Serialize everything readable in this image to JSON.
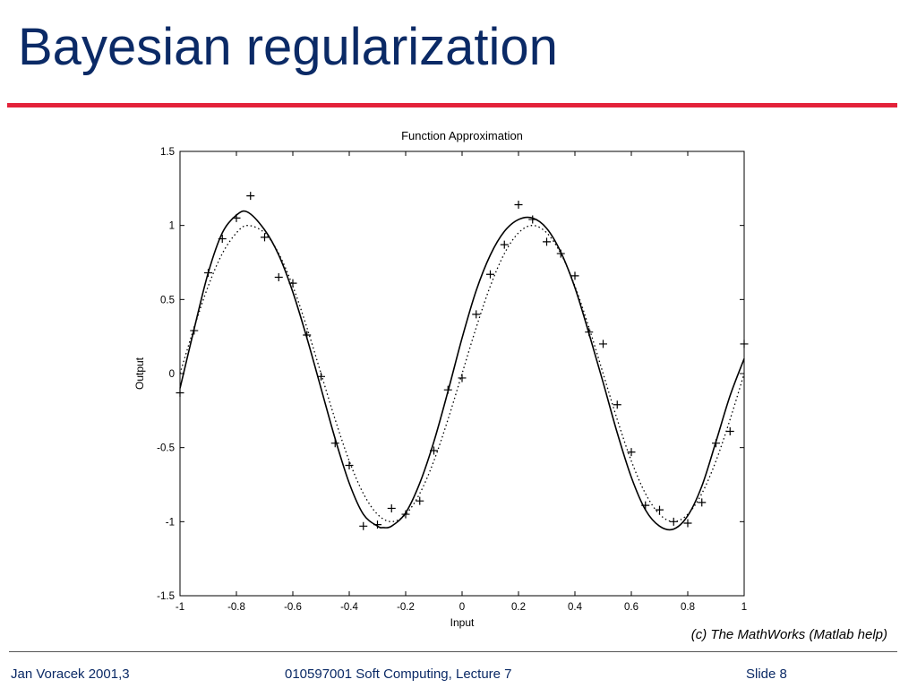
{
  "slide": {
    "title": "Bayesian regularization",
    "credit": "(c) The MathWorks (Matlab help)",
    "footer": {
      "author": "Jan Voracek 2001,3",
      "course": "010597001 Soft Computing, Lecture 7",
      "slide": "Slide 8"
    },
    "colors": {
      "title": "#0b2a66",
      "rule": "#e3223a"
    }
  },
  "chart_data": {
    "type": "line",
    "title": "Function Approximation",
    "xlabel": "Input",
    "ylabel": "Output",
    "xlim": [
      -1,
      1
    ],
    "ylim": [
      -1.5,
      1.5
    ],
    "xticks": [
      -1,
      -0.8,
      -0.6,
      -0.4,
      -0.2,
      0,
      0.2,
      0.4,
      0.6,
      0.8,
      1
    ],
    "xtick_labels": [
      "-1",
      "-0.8",
      "-0.6",
      "-0.4",
      "-0.2",
      "0",
      "0.2",
      "0.4",
      "0.6",
      "0.8",
      "1"
    ],
    "yticks": [
      -1.5,
      -1,
      -0.5,
      0,
      0.5,
      1,
      1.5
    ],
    "ytick_labels": [
      "-1.5",
      "-1",
      "-0.5",
      "0",
      "0.5",
      "1",
      "1.5"
    ],
    "grid": false,
    "legend": "none",
    "series": [
      {
        "style": "solid",
        "x": [
          -1,
          -0.95,
          -0.9,
          -0.85,
          -0.8,
          -0.76,
          -0.7,
          -0.65,
          -0.6,
          -0.55,
          -0.5,
          -0.45,
          -0.4,
          -0.35,
          -0.3,
          -0.28,
          -0.25,
          -0.2,
          -0.15,
          -0.1,
          -0.05,
          0,
          0.05,
          0.1,
          0.15,
          0.2,
          0.25,
          0.3,
          0.35,
          0.4,
          0.45,
          0.5,
          0.55,
          0.6,
          0.65,
          0.7,
          0.75,
          0.8,
          0.85,
          0.9,
          0.95,
          1
        ],
        "y": [
          -0.1,
          0.3,
          0.68,
          0.95,
          1.07,
          1.09,
          0.97,
          0.8,
          0.55,
          0.24,
          -0.1,
          -0.44,
          -0.74,
          -0.95,
          -1.03,
          -1.04,
          -1.03,
          -0.94,
          -0.74,
          -0.46,
          -0.12,
          0.24,
          0.56,
          0.8,
          0.96,
          1.04,
          1.05,
          0.98,
          0.82,
          0.58,
          0.27,
          -0.06,
          -0.4,
          -0.7,
          -0.92,
          -1.03,
          -1.05,
          -0.96,
          -0.76,
          -0.46,
          -0.15,
          0.1
        ]
      },
      {
        "style": "dotted",
        "x": [
          -1,
          -0.95,
          -0.9,
          -0.85,
          -0.8,
          -0.76,
          -0.7,
          -0.65,
          -0.6,
          -0.55,
          -0.5,
          -0.45,
          -0.4,
          -0.35,
          -0.3,
          -0.25,
          -0.2,
          -0.15,
          -0.1,
          -0.05,
          0,
          0.05,
          0.1,
          0.15,
          0.2,
          0.25,
          0.3,
          0.35,
          0.4,
          0.45,
          0.5,
          0.55,
          0.6,
          0.65,
          0.7,
          0.75,
          0.8,
          0.85,
          0.9,
          0.95,
          1
        ],
        "y": [
          0,
          0.31,
          0.59,
          0.81,
          0.95,
          1.0,
          0.95,
          0.81,
          0.59,
          0.31,
          0,
          -0.31,
          -0.59,
          -0.81,
          -0.95,
          -1.0,
          -0.95,
          -0.81,
          -0.59,
          -0.31,
          0,
          0.31,
          0.59,
          0.81,
          0.95,
          1.0,
          0.95,
          0.81,
          0.59,
          0.31,
          0,
          -0.31,
          -0.59,
          -0.81,
          -0.95,
          -1.0,
          -0.95,
          -0.81,
          -0.59,
          -0.31,
          0
        ]
      },
      {
        "style": "markers-plus",
        "x": [
          -1,
          -0.95,
          -0.9,
          -0.85,
          -0.8,
          -0.75,
          -0.7,
          -0.65,
          -0.6,
          -0.55,
          -0.5,
          -0.45,
          -0.4,
          -0.35,
          -0.3,
          -0.25,
          -0.2,
          -0.15,
          -0.1,
          -0.05,
          0,
          0.05,
          0.1,
          0.15,
          0.2,
          0.25,
          0.3,
          0.35,
          0.4,
          0.45,
          0.5,
          0.55,
          0.6,
          0.65,
          0.7,
          0.75,
          0.8,
          0.85,
          0.9,
          0.95,
          1
        ],
        "y": [
          -0.13,
          0.29,
          0.68,
          0.91,
          1.05,
          1.2,
          0.92,
          0.65,
          0.61,
          0.26,
          -0.02,
          -0.47,
          -0.62,
          -1.03,
          -1.02,
          -0.91,
          -0.95,
          -0.86,
          -0.52,
          -0.11,
          -0.03,
          0.4,
          0.67,
          0.87,
          1.14,
          1.04,
          0.89,
          0.81,
          0.66,
          0.28,
          0.2,
          -0.21,
          -0.53,
          -0.89,
          -0.92,
          -1.0,
          -1.01,
          -0.87,
          -0.47,
          -0.39,
          0.2
        ]
      }
    ]
  }
}
